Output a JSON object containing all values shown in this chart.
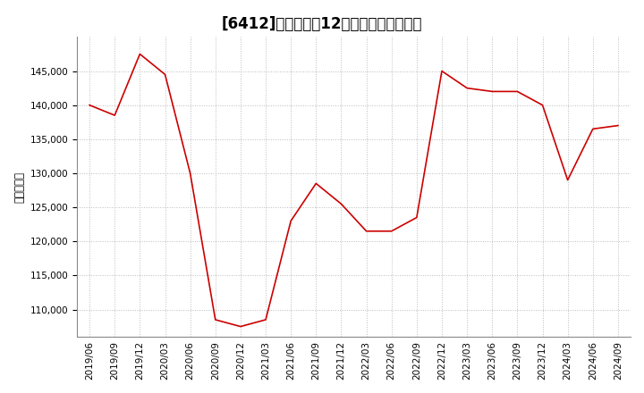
{
  "title": "[6412]　売上高の12か月移動合計の推移",
  "ylabel": "（百万円）",
  "line_color": "#cc0000",
  "background_color": "#ffffff",
  "grid_color": "#bbbbbb",
  "dates": [
    "2019/06",
    "2019/09",
    "2019/12",
    "2020/03",
    "2020/06",
    "2020/09",
    "2020/12",
    "2021/03",
    "2021/06",
    "2021/09",
    "2021/12",
    "2022/03",
    "2022/06",
    "2022/09",
    "2022/12",
    "2023/03",
    "2023/06",
    "2023/09",
    "2023/12",
    "2024/03",
    "2024/06",
    "2024/09"
  ],
  "values": [
    140000,
    138500,
    147500,
    144500,
    130000,
    108500,
    107500,
    108500,
    123000,
    128500,
    125500,
    121500,
    121500,
    123500,
    145000,
    142500,
    142000,
    142000,
    140000,
    129000,
    136500,
    137000
  ],
  "ylim": [
    106000,
    150000
  ],
  "yticks": [
    110000,
    115000,
    120000,
    125000,
    130000,
    135000,
    140000,
    145000
  ],
  "title_fontsize": 12,
  "tick_fontsize": 7.5,
  "ylabel_fontsize": 8.5
}
